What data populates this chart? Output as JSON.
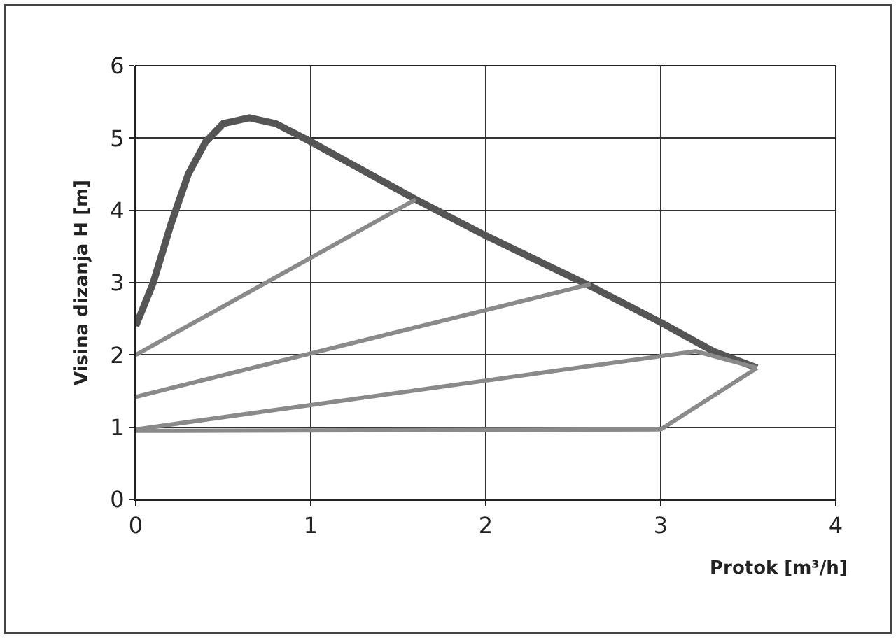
{
  "chart_data": {
    "type": "line",
    "xlabel": "Protok [m³/h]",
    "ylabel": "Visina dizanja H [m]",
    "xlim": [
      0,
      4
    ],
    "ylim": [
      0,
      6
    ],
    "xticks": [
      0,
      1,
      2,
      3,
      4
    ],
    "yticks": [
      0,
      1,
      2,
      3,
      4,
      5,
      6
    ],
    "grid": true,
    "marker": "none",
    "line_style": "solid",
    "series": [
      {
        "color": "#555555",
        "x": [
          0,
          0.1,
          0.2,
          0.3,
          0.4,
          0.5,
          0.65,
          0.8,
          1,
          1.3,
          1.6,
          2,
          2.3,
          2.6,
          3,
          3.3,
          3.55
        ],
        "values": [
          2.4,
          3.0,
          3.8,
          4.5,
          4.95,
          5.2,
          5.28,
          5.2,
          4.95,
          4.55,
          4.15,
          3.65,
          3.3,
          2.95,
          2.45,
          2.05,
          1.82
        ]
      },
      {
        "color": "#8a8a8a",
        "x": [
          0,
          1.6
        ],
        "values": [
          2.0,
          4.15
        ]
      },
      {
        "color": "#8a8a8a",
        "x": [
          0,
          2.6
        ],
        "values": [
          1.42,
          2.98
        ]
      },
      {
        "color": "#8a8a8a",
        "x": [
          0,
          3.2,
          3.55
        ],
        "values": [
          0.97,
          2.05,
          1.82
        ]
      },
      {
        "color": "#8a8a8a",
        "x": [
          0,
          3,
          3.55
        ],
        "values": [
          0.95,
          0.97,
          1.82
        ]
      }
    ]
  }
}
